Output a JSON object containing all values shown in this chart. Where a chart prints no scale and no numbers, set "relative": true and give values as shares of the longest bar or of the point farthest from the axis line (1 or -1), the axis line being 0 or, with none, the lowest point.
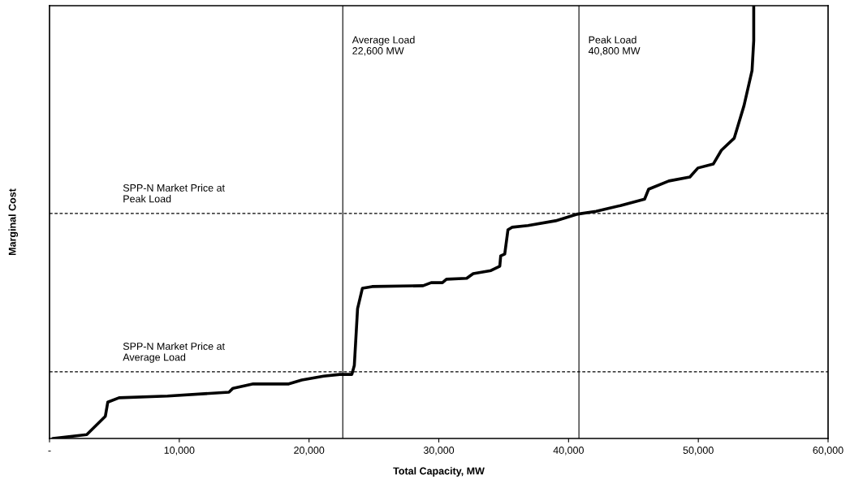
{
  "chart_data": {
    "type": "line",
    "xlabel": "Total Capacity, MW",
    "ylabel": "Marginal Cost",
    "relative": true,
    "xlim": [
      0,
      60000
    ],
    "xticks": [
      {
        "value": 0,
        "label": "-"
      },
      {
        "value": 10000,
        "label": "10,000"
      },
      {
        "value": 20000,
        "label": "20,000"
      },
      {
        "value": 30000,
        "label": "30,000"
      },
      {
        "value": 40000,
        "label": "40,000"
      },
      {
        "value": 50000,
        "label": "50,000"
      },
      {
        "value": 60000,
        "label": "60,000"
      }
    ],
    "series": [
      {
        "color": "#000000",
        "x": [
          250,
          2870,
          4300,
          4490,
          5360,
          9100,
          13830,
          14140,
          15700,
          18440,
          19440,
          21120,
          22370,
          23300,
          23490,
          23740,
          24110,
          24860,
          28790,
          29410,
          30280,
          30590,
          32150,
          32650,
          34020,
          34700,
          34770,
          35080,
          35330,
          35640,
          36880,
          39000,
          40620,
          42120,
          43990,
          45860,
          46170,
          47730,
          49350,
          49970,
          51150,
          51780,
          52770,
          53520,
          54140,
          54270,
          54270
        ],
        "values": [
          0,
          0.009,
          0.051,
          0.084,
          0.094,
          0.098,
          0.107,
          0.116,
          0.126,
          0.126,
          0.135,
          0.144,
          0.148,
          0.148,
          0.169,
          0.3,
          0.347,
          0.351,
          0.353,
          0.36,
          0.36,
          0.368,
          0.37,
          0.381,
          0.388,
          0.398,
          0.422,
          0.426,
          0.482,
          0.488,
          0.492,
          0.503,
          0.518,
          0.525,
          0.538,
          0.553,
          0.576,
          0.595,
          0.604,
          0.625,
          0.634,
          0.666,
          0.694,
          0.769,
          0.85,
          0.919,
          1
        ]
      }
    ],
    "ref_lines": [
      {
        "axis": "x",
        "value": 22600,
        "label": "Average Load\n22,600 MW",
        "color": "#000000",
        "line_style": "solid"
      },
      {
        "axis": "x",
        "value": 40800,
        "label": "Peak Load\n40,800 MW",
        "color": "#000000",
        "line_style": "solid"
      },
      {
        "axis": "y",
        "value": 0.154,
        "label": "SPP-N Market Price at\nAverage Load",
        "color": "#000000",
        "line_style": "dashed"
      },
      {
        "axis": "y",
        "value": 0.52,
        "label": "SPP-N Market Price at\nPeak Load",
        "color": "#000000",
        "line_style": "dashed"
      }
    ],
    "grid": false,
    "legend": false
  }
}
